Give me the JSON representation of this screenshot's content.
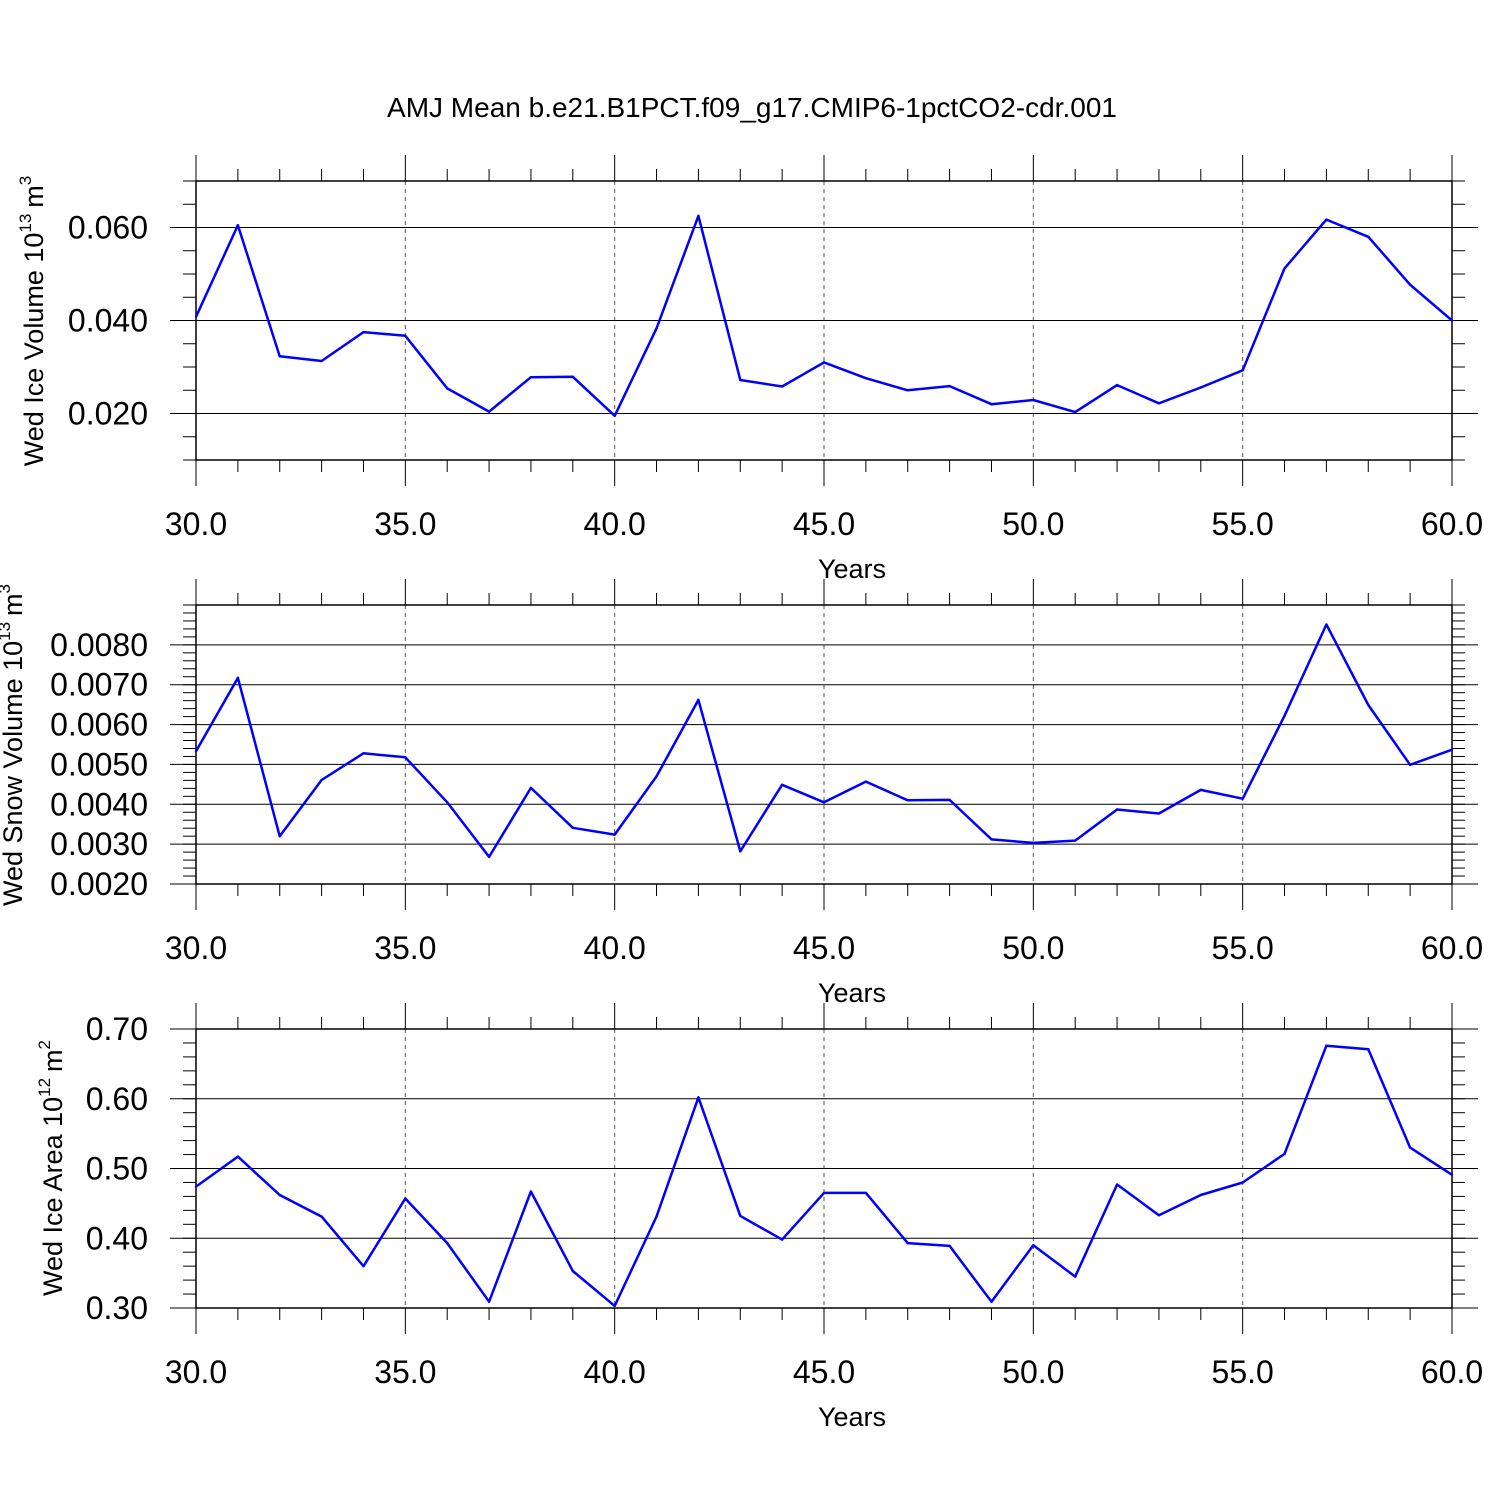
{
  "title": "AMJ Mean b.e21.B1PCT.f09_g17.CMIP6-1pctCO2-cdr.001",
  "colors": {
    "series": "#0000ff",
    "axis": "#000000",
    "grid": "#555555"
  },
  "chart_data": [
    {
      "type": "line",
      "xlabel": "Years",
      "ylabel": {
        "main": "Wed Ice Volume 10",
        "exp": "13",
        "unit": "m",
        "unit_exp": "3"
      },
      "xlim": [
        30,
        60
      ],
      "ylim": [
        0.01,
        0.07
      ],
      "x_ticks": [
        "30.0",
        "35.0",
        "40.0",
        "45.0",
        "50.0",
        "55.0",
        "60.0"
      ],
      "y_ticks": [
        "0.020",
        "0.040",
        "0.060"
      ],
      "y_tick_values": [
        0.02,
        0.04,
        0.06
      ],
      "y_minor_step": 0.005,
      "grid": "vertical dashed at major x ticks",
      "x": [
        30,
        31,
        32,
        33,
        34,
        35,
        36,
        37,
        38,
        39,
        40,
        41,
        42,
        43,
        44,
        45,
        46,
        47,
        48,
        49,
        50,
        51,
        52,
        53,
        54,
        55,
        56,
        57,
        58,
        59,
        60
      ],
      "values": [
        0.0408,
        0.0605,
        0.0323,
        0.0313,
        0.0375,
        0.0367,
        0.0254,
        0.0204,
        0.0278,
        0.0279,
        0.0195,
        0.0383,
        0.0625,
        0.0272,
        0.0258,
        0.031,
        0.0276,
        0.025,
        0.0259,
        0.022,
        0.0229,
        0.0203,
        0.0261,
        0.0222,
        0.0256,
        0.0293,
        0.0512,
        0.0617,
        0.058,
        0.0477,
        0.04
      ]
    },
    {
      "type": "line",
      "xlabel": "Years",
      "ylabel": {
        "main": "Wed Snow Volume 10",
        "exp": "13",
        "unit": "m",
        "unit_exp": "3"
      },
      "xlim": [
        30,
        60
      ],
      "ylim": [
        0.002,
        0.009
      ],
      "x_ticks": [
        "30.0",
        "35.0",
        "40.0",
        "45.0",
        "50.0",
        "55.0",
        "60.0"
      ],
      "y_ticks": [
        "0.0020",
        "0.0030",
        "0.0040",
        "0.0050",
        "0.0060",
        "0.0070",
        "0.0080"
      ],
      "y_tick_values": [
        0.002,
        0.003,
        0.004,
        0.005,
        0.006,
        0.007,
        0.008
      ],
      "y_minor_step": 0.0002,
      "grid": "vertical dashed at major x ticks",
      "x": [
        30,
        31,
        32,
        33,
        34,
        35,
        36,
        37,
        38,
        39,
        40,
        41,
        42,
        43,
        44,
        45,
        46,
        47,
        48,
        49,
        50,
        51,
        52,
        53,
        54,
        55,
        56,
        57,
        58,
        59,
        60
      ],
      "values": [
        0.00533,
        0.00717,
        0.0032,
        0.00461,
        0.00528,
        0.00518,
        0.00405,
        0.00268,
        0.00441,
        0.00341,
        0.00324,
        0.0047,
        0.00662,
        0.00282,
        0.00449,
        0.00405,
        0.00457,
        0.0041,
        0.00411,
        0.00312,
        0.00303,
        0.00309,
        0.00387,
        0.00377,
        0.00436,
        0.00414,
        0.00622,
        0.00851,
        0.00649,
        0.00499,
        0.00537
      ]
    },
    {
      "type": "line",
      "xlabel": "Years",
      "ylabel": {
        "main": "Wed Ice Area 10",
        "exp": "12",
        "unit": "m",
        "unit_exp": "2"
      },
      "xlim": [
        30,
        60
      ],
      "ylim": [
        0.3,
        0.7
      ],
      "x_ticks": [
        "30.0",
        "35.0",
        "40.0",
        "45.0",
        "50.0",
        "55.0",
        "60.0"
      ],
      "y_ticks": [
        "0.30",
        "0.40",
        "0.50",
        "0.60",
        "0.70"
      ],
      "y_tick_values": [
        0.3,
        0.4,
        0.5,
        0.6,
        0.7
      ],
      "y_minor_step": 0.02,
      "grid": "vertical dashed at major x ticks",
      "x": [
        30,
        31,
        32,
        33,
        34,
        35,
        36,
        37,
        38,
        39,
        40,
        41,
        42,
        43,
        44,
        45,
        46,
        47,
        48,
        49,
        50,
        51,
        52,
        53,
        54,
        55,
        56,
        57,
        58,
        59,
        60
      ],
      "values": [
        0.474,
        0.517,
        0.462,
        0.431,
        0.36,
        0.457,
        0.393,
        0.309,
        0.467,
        0.353,
        0.303,
        0.431,
        0.602,
        0.432,
        0.398,
        0.465,
        0.465,
        0.393,
        0.389,
        0.309,
        0.39,
        0.345,
        0.477,
        0.433,
        0.462,
        0.48,
        0.521,
        0.676,
        0.671,
        0.53,
        0.491
      ]
    }
  ]
}
